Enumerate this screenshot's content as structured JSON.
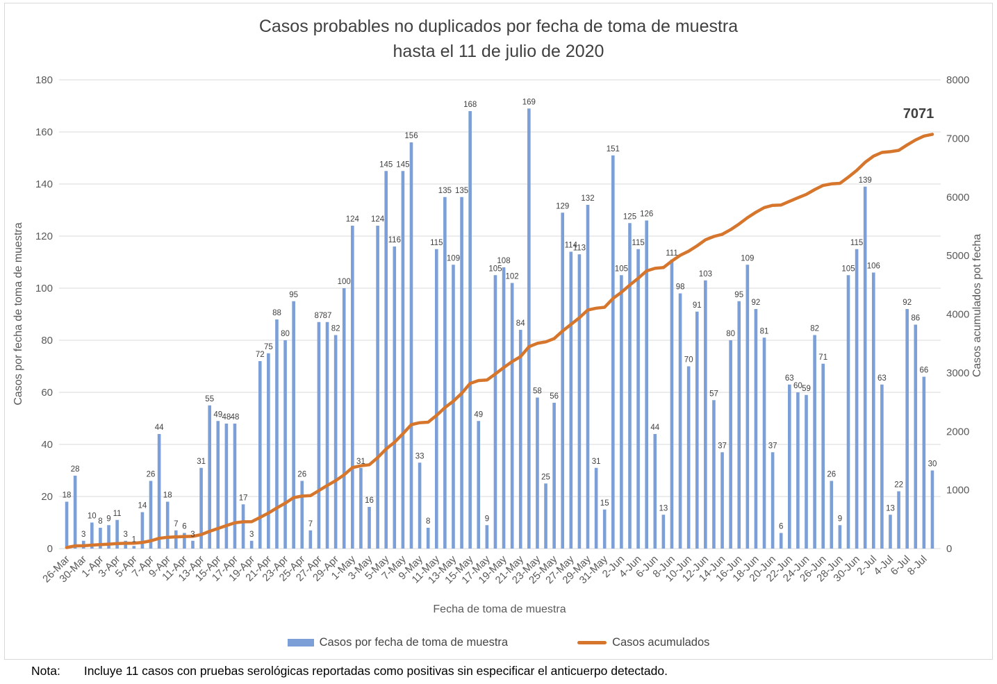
{
  "title": {
    "line1": "Casos probables no duplicados por fecha de toma de muestra",
    "line2": "hasta el 11 de julio de 2020"
  },
  "axes": {
    "left_title": "Casos por fecha de toma de muestra",
    "right_title": "Casos acumulados pot fecha",
    "x_title": "Fecha de toma de muestra"
  },
  "legend": {
    "bars_label": "Casos por fecha de toma de muestra",
    "line_label": "Casos acumulados"
  },
  "annotation": {
    "final_cumulative": "7071"
  },
  "note": {
    "prefix": "Nota:",
    "text": "Incluye 11 casos con pruebas serológicas reportadas como positivas sin especificar el anticuerpo detectado."
  },
  "colors": {
    "bar": "#7B9FD6",
    "line": "#D6762D",
    "gridline": "#D9D9D9",
    "axis_text": "#595959",
    "data_label": "#404040",
    "title_text": "#404040",
    "note_text": "#000000"
  },
  "chart_data": {
    "type": "bar",
    "title": "Casos probables no duplicados por fecha de toma de muestra hasta el 11 de julio de 2020",
    "xlabel": "Fecha de toma de muestra",
    "ylabel_left": "Casos por fecha de toma de muestra",
    "ylabel_right": "Casos acumulados pot fecha",
    "grid": true,
    "legend_position": "bottom",
    "left_axis": {
      "min": 0,
      "max": 180,
      "step": 20
    },
    "right_axis": {
      "min": 0,
      "max": 8000,
      "step": 1000
    },
    "x_tick_every": 2,
    "x_tick_labels": [
      "26-Mar",
      "30-Mar",
      "1-Apr",
      "3-Apr",
      "5-Apr",
      "7-Apr",
      "9-Apr",
      "11-Apr",
      "13-Apr",
      "15-Apr",
      "17-Apr",
      "19-Apr",
      "21-Apr",
      "23-Apr",
      "25-Apr",
      "27-Apr",
      "29-Apr",
      "1-May",
      "3-May",
      "5-May",
      "7-May",
      "9-May",
      "11-May",
      "13-May",
      "15-May",
      "17-May",
      "19-May",
      "21-May",
      "23-May",
      "25-May",
      "27-May",
      "29-May",
      "31-May",
      "2-Jun",
      "4-Jun",
      "6-Jun",
      "8-Jun",
      "10-Jun",
      "12-Jun",
      "14-Jun",
      "16-Jun",
      "18-Jun",
      "20-Jun",
      "22-Jun",
      "24-Jun",
      "26-Jun",
      "28-Jun",
      "30-Jun",
      "2-Jul",
      "4-Jul",
      "6-Jul",
      "8-Jul"
    ],
    "bar_series": {
      "name": "Casos por fecha de toma de muestra",
      "axis": "left",
      "values": [
        18,
        28,
        3,
        10,
        8,
        9,
        11,
        3,
        1,
        14,
        26,
        44,
        18,
        7,
        6,
        3,
        31,
        55,
        49,
        48,
        48,
        17,
        3,
        72,
        75,
        88,
        80,
        95,
        26,
        7,
        87,
        87,
        82,
        100,
        124,
        31,
        16,
        124,
        145,
        116,
        145,
        156,
        33,
        8,
        115,
        135,
        109,
        135,
        168,
        49,
        9,
        105,
        108,
        102,
        84,
        169,
        58,
        25,
        56,
        129,
        114,
        113,
        132,
        31,
        15,
        151,
        105,
        125,
        115,
        126,
        44,
        13,
        111,
        98,
        70,
        91,
        103,
        57,
        37,
        80,
        95,
        109,
        92,
        81,
        37,
        6,
        63,
        60,
        59,
        82,
        71,
        26,
        9,
        105,
        115,
        139,
        106,
        63,
        13,
        22,
        92,
        86,
        66,
        30
      ]
    },
    "line_series": {
      "name": "Casos acumulados",
      "axis": "right",
      "values": [
        18,
        46,
        49,
        59,
        67,
        76,
        87,
        90,
        91,
        105,
        131,
        175,
        193,
        200,
        206,
        209,
        240,
        295,
        344,
        392,
        440,
        457,
        460,
        532,
        607,
        695,
        775,
        870,
        896,
        903,
        990,
        1077,
        1159,
        1259,
        1383,
        1414,
        1430,
        1554,
        1699,
        1815,
        1960,
        2116,
        2149,
        2157,
        2272,
        2407,
        2516,
        2651,
        2819,
        2868,
        2877,
        2982,
        3090,
        3192,
        3276,
        3445,
        3503,
        3528,
        3584,
        3713,
        3827,
        3940,
        4072,
        4103,
        4118,
        4269,
        4374,
        4499,
        4614,
        4740,
        4784,
        4797,
        4908,
        5006,
        5076,
        5167,
        5270,
        5327,
        5364,
        5444,
        5539,
        5648,
        5740,
        5821,
        5858,
        5864,
        5927,
        5987,
        6046,
        6128,
        6199,
        6225,
        6234,
        6339,
        6454,
        6593,
        6699,
        6762,
        6775,
        6797,
        6889,
        6975,
        7041,
        7071
      ],
      "final_value": 7071
    }
  }
}
